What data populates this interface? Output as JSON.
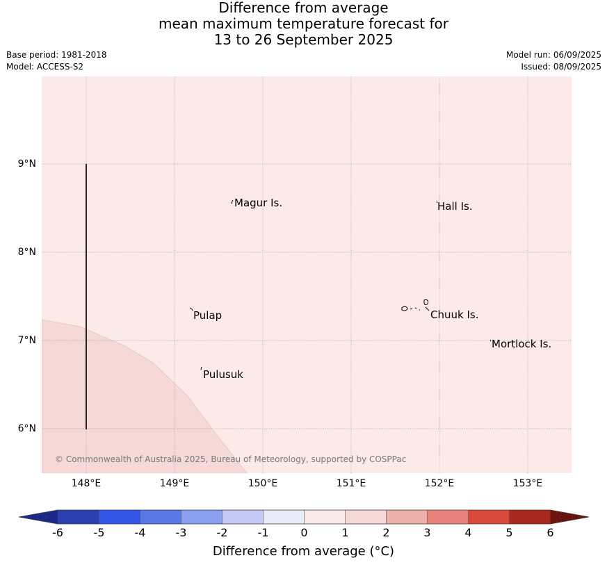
{
  "title": {
    "line1": "Difference from average",
    "line2": "mean maximum temperature forecast for",
    "line3": "13 to 26 September 2025"
  },
  "meta": {
    "base_period": "Base period: 1981-2018",
    "model": "Model: ACCESS-S2",
    "model_run": "Model run: 06/09/2025",
    "issued": "Issued: 08/09/2025"
  },
  "map": {
    "background_color": "#fbeae8",
    "anomaly_zone_color": "#f5d9d6",
    "lat_labels": [
      "9°N",
      "8°N",
      "7°N",
      "6°N"
    ],
    "lon_labels": [
      "148°E",
      "149°E",
      "150°E",
      "151°E",
      "152°E",
      "153°E"
    ],
    "places": [
      "Magur Is.",
      "Hall Is.",
      "Pulap",
      "Chuuk Is.",
      "Mortlock Is.",
      "Pulusuk"
    ],
    "copyright": "© Commonwealth of Australia 2025, Bureau of Meteorology, supported by COSPPac"
  },
  "colorbar": {
    "ticks": [
      "-6",
      "-5",
      "-4",
      "-3",
      "-2",
      "-1",
      "0",
      "1",
      "2",
      "3",
      "4",
      "5",
      "6"
    ],
    "colors": [
      "#1b2a8a",
      "#2a3fb0",
      "#3355e8",
      "#5a77e6",
      "#8b9ff0",
      "#c2caf5",
      "#e9ecfa",
      "#fbeae8",
      "#f5d9d6",
      "#eeb0ab",
      "#e8827a",
      "#dc4a3c",
      "#a8281e",
      "#6a1410"
    ],
    "label": "Difference from average (°C)"
  }
}
